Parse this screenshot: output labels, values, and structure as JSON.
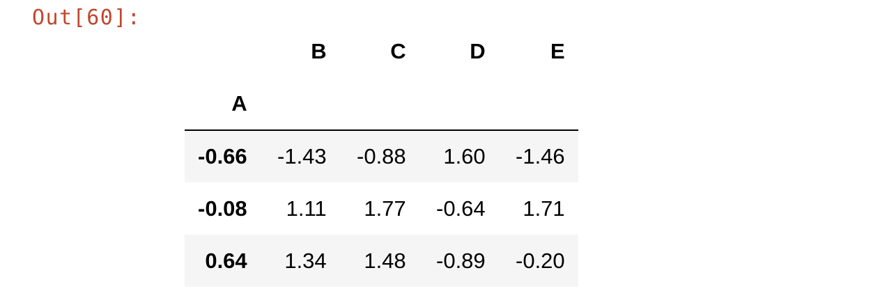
{
  "cell": {
    "prompt": "Out[60]:"
  },
  "dataframe": {
    "columns": [
      "B",
      "C",
      "D",
      "E"
    ],
    "index_name": "A",
    "rows": [
      {
        "index": "-0.66",
        "values": [
          "-1.43",
          "-0.88",
          "1.60",
          "-1.46"
        ]
      },
      {
        "index": "-0.08",
        "values": [
          "1.11",
          "1.77",
          "-0.64",
          "1.71"
        ]
      },
      {
        "index": "0.64",
        "values": [
          "1.34",
          "1.48",
          "-0.89",
          "-0.20"
        ]
      }
    ]
  },
  "colors": {
    "prompt": "#c0472e",
    "stripe": "#f5f5f5",
    "text": "#000000"
  }
}
